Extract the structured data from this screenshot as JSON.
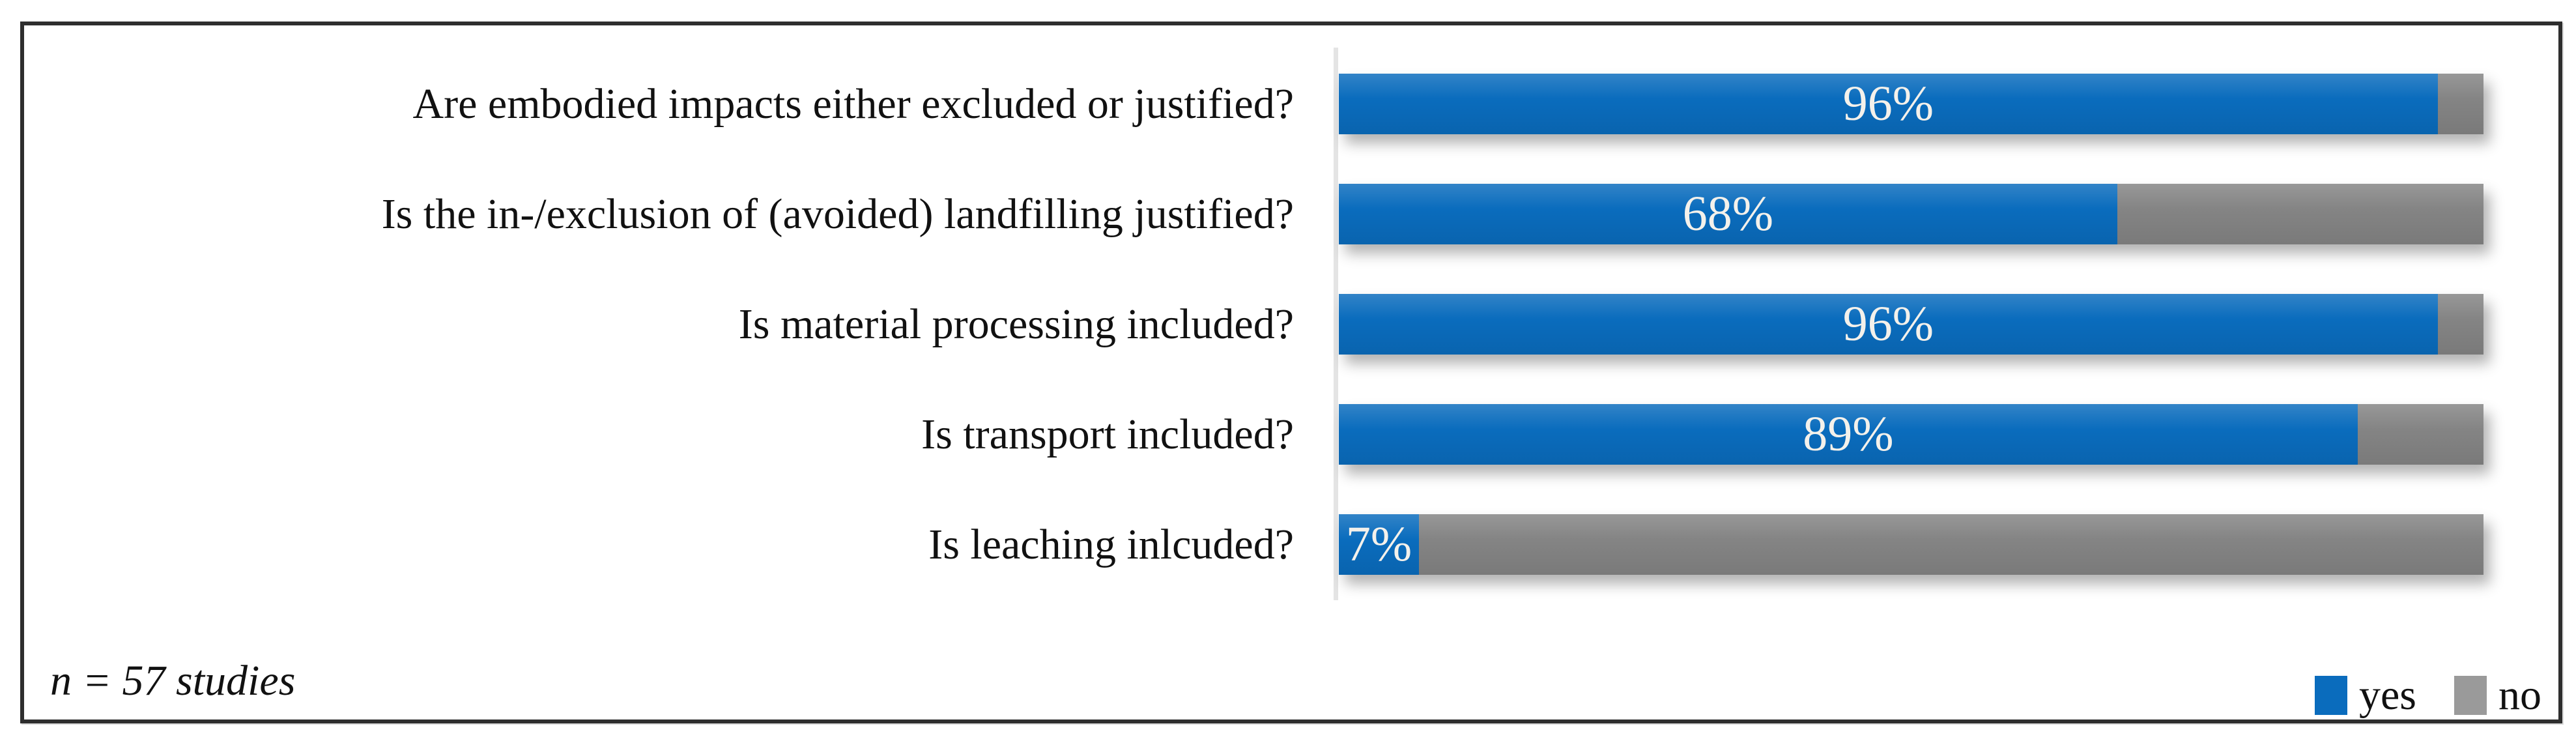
{
  "chart_data": {
    "type": "bar",
    "orientation": "horizontal-stacked",
    "title": "",
    "xlabel": "",
    "ylabel": "",
    "xlim": [
      0,
      100
    ],
    "grid": false,
    "legend_position": "bottom-right",
    "value_suffix": "%",
    "categories": [
      "Are embodied impacts either excluded or justified?",
      "Is the in-/exclusion of (avoided) landfilling justified?",
      "Is material processing included?",
      "Is transport included?",
      "Is leaching inlcuded?"
    ],
    "series": [
      {
        "name": "yes",
        "values": [
          96,
          68,
          96,
          89,
          7
        ],
        "color": "#0a6cbd"
      },
      {
        "name": "no",
        "values": [
          4,
          32,
          4,
          11,
          93
        ],
        "color": "#848484"
      }
    ],
    "bar_labels": [
      "96%",
      "68%",
      "96%",
      "89%",
      "7%"
    ],
    "note": "n = 57 studies"
  },
  "legend": {
    "items": [
      {
        "label": "yes",
        "color": "#0a6cbd"
      },
      {
        "label": "no",
        "color": "#9a9a9a"
      }
    ]
  },
  "frame": {
    "border_color": "#2e2e2e",
    "background": "#ffffff",
    "axis_line_color": "#e4e4e4",
    "bar_value_text_color": "#f4f1eb"
  }
}
